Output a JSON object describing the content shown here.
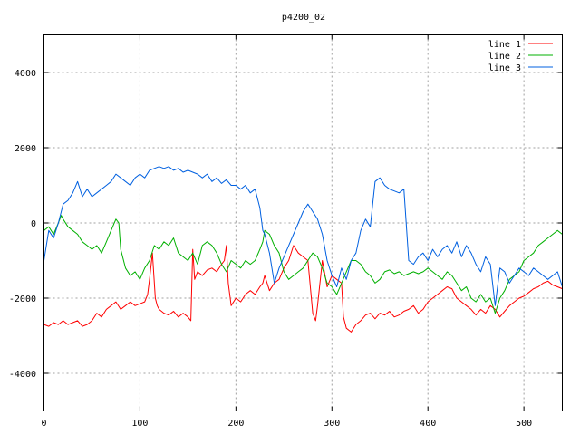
{
  "chart_data": {
    "type": "line",
    "title": "p4200_02",
    "xlabel": "",
    "ylabel": "",
    "xlim": [
      0,
      540
    ],
    "ylim": [
      -5000,
      5000
    ],
    "xticks": [
      0,
      100,
      200,
      300,
      400,
      500
    ],
    "yticks": [
      -4000,
      -2000,
      0,
      2000,
      4000
    ],
    "xtick_labels": [
      "0",
      "100",
      "200",
      "300",
      "400",
      "500"
    ],
    "ytick_labels": [
      "-4000",
      "-2000",
      "0",
      "2000",
      "4000"
    ],
    "grid": true,
    "legend_position": "top-right",
    "series": [
      {
        "name": "line 1",
        "color": "#ff0000",
        "x": [
          0,
          5,
          10,
          15,
          20,
          25,
          30,
          35,
          40,
          45,
          50,
          55,
          60,
          65,
          70,
          75,
          80,
          85,
          90,
          95,
          100,
          105,
          108,
          110,
          113,
          116,
          118,
          120,
          125,
          130,
          135,
          140,
          145,
          150,
          153,
          155,
          157,
          160,
          165,
          170,
          175,
          180,
          185,
          188,
          190,
          192,
          195,
          200,
          205,
          210,
          215,
          220,
          225,
          228,
          230,
          235,
          240,
          245,
          250,
          255,
          260,
          265,
          270,
          275,
          280,
          283,
          285,
          290,
          295,
          300,
          305,
          310,
          312,
          315,
          320,
          325,
          330,
          335,
          340,
          345,
          350,
          355,
          360,
          365,
          370,
          375,
          380,
          385,
          390,
          395,
          400,
          405,
          410,
          415,
          420,
          425,
          430,
          435,
          440,
          445,
          450,
          455,
          460,
          465,
          470,
          475,
          480,
          485,
          490,
          495,
          500,
          505,
          510,
          515,
          520,
          525,
          530,
          535,
          540
        ],
        "y": [
          -2700,
          -2750,
          -2650,
          -2700,
          -2600,
          -2700,
          -2650,
          -2600,
          -2750,
          -2700,
          -2600,
          -2400,
          -2500,
          -2300,
          -2200,
          -2100,
          -2300,
          -2200,
          -2100,
          -2200,
          -2150,
          -2100,
          -1900,
          -1500,
          -800,
          -2000,
          -2200,
          -2300,
          -2400,
          -2450,
          -2350,
          -2500,
          -2400,
          -2500,
          -2600,
          -700,
          -1500,
          -1300,
          -1400,
          -1250,
          -1200,
          -1300,
          -1100,
          -1000,
          -600,
          -1600,
          -2200,
          -2000,
          -2100,
          -1900,
          -1800,
          -1900,
          -1700,
          -1600,
          -1400,
          -1800,
          -1600,
          -1500,
          -1200,
          -1000,
          -600,
          -800,
          -900,
          -1000,
          -2400,
          -2600,
          -2200,
          -1000,
          -1700,
          -1400,
          -1500,
          -1600,
          -2500,
          -2800,
          -2900,
          -2700,
          -2600,
          -2450,
          -2400,
          -2550,
          -2400,
          -2450,
          -2350,
          -2500,
          -2450,
          -2350,
          -2300,
          -2200,
          -2400,
          -2300,
          -2100,
          -2000,
          -1900,
          -1800,
          -1700,
          -1750,
          -2000,
          -2100,
          -2200,
          -2300,
          -2450,
          -2300,
          -2400,
          -2200,
          -2300,
          -2500,
          -2350,
          -2200,
          -2100,
          -2000,
          -1950,
          -1850,
          -1750,
          -1700,
          -1600,
          -1550,
          -1650,
          -1700,
          -1750
        ]
      },
      {
        "name": "line 2",
        "color": "#00b000",
        "x": [
          0,
          5,
          10,
          15,
          18,
          20,
          25,
          30,
          35,
          40,
          45,
          50,
          55,
          60,
          65,
          70,
          75,
          78,
          80,
          85,
          90,
          95,
          100,
          105,
          110,
          115,
          120,
          125,
          130,
          135,
          140,
          145,
          150,
          155,
          160,
          165,
          170,
          175,
          180,
          185,
          190,
          195,
          200,
          205,
          210,
          215,
          220,
          225,
          228,
          230,
          235,
          240,
          245,
          250,
          255,
          260,
          265,
          270,
          275,
          280,
          285,
          290,
          295,
          300,
          305,
          310,
          315,
          320,
          325,
          330,
          335,
          340,
          345,
          350,
          355,
          360,
          365,
          370,
          375,
          380,
          385,
          390,
          395,
          400,
          405,
          410,
          415,
          420,
          425,
          430,
          435,
          440,
          445,
          450,
          455,
          460,
          465,
          470,
          475,
          480,
          485,
          490,
          495,
          500,
          505,
          510,
          515,
          520,
          525,
          530,
          535,
          540
        ],
        "y": [
          -200,
          -100,
          -300,
          0,
          200,
          100,
          -100,
          -200,
          -300,
          -500,
          -600,
          -700,
          -600,
          -800,
          -500,
          -200,
          100,
          0,
          -700,
          -1200,
          -1400,
          -1300,
          -1500,
          -1200,
          -1000,
          -600,
          -700,
          -500,
          -600,
          -400,
          -800,
          -900,
          -1000,
          -800,
          -1100,
          -600,
          -500,
          -600,
          -800,
          -1100,
          -1300,
          -1000,
          -1100,
          -1200,
          -1000,
          -1100,
          -1000,
          -700,
          -500,
          -200,
          -300,
          -600,
          -800,
          -1300,
          -1500,
          -1400,
          -1300,
          -1200,
          -1000,
          -800,
          -900,
          -1200,
          -1600,
          -1700,
          -1900,
          -1600,
          -1300,
          -1000,
          -1000,
          -1100,
          -1300,
          -1400,
          -1600,
          -1500,
          -1300,
          -1250,
          -1350,
          -1300,
          -1400,
          -1350,
          -1300,
          -1350,
          -1300,
          -1200,
          -1300,
          -1400,
          -1500,
          -1300,
          -1400,
          -1600,
          -1800,
          -1700,
          -2000,
          -2100,
          -1900,
          -2100,
          -2000,
          -2400,
          -2000,
          -1800,
          -1500,
          -1400,
          -1300,
          -1000,
          -900,
          -800,
          -600,
          -500,
          -400,
          -300,
          -200,
          -300
        ]
      },
      {
        "name": "line 3",
        "color": "#0060e0",
        "x": [
          0,
          5,
          10,
          15,
          20,
          25,
          30,
          35,
          40,
          45,
          50,
          55,
          60,
          65,
          70,
          75,
          80,
          85,
          90,
          95,
          100,
          105,
          110,
          115,
          120,
          125,
          130,
          135,
          140,
          145,
          150,
          155,
          160,
          165,
          170,
          175,
          180,
          185,
          190,
          195,
          200,
          205,
          210,
          215,
          220,
          225,
          228,
          230,
          235,
          240,
          245,
          250,
          255,
          260,
          265,
          270,
          275,
          280,
          285,
          290,
          295,
          300,
          305,
          310,
          315,
          320,
          325,
          330,
          335,
          340,
          345,
          350,
          355,
          360,
          365,
          370,
          375,
          380,
          385,
          390,
          395,
          400,
          405,
          410,
          415,
          420,
          425,
          430,
          435,
          440,
          445,
          450,
          455,
          460,
          465,
          470,
          475,
          480,
          485,
          490,
          495,
          500,
          505,
          510,
          515,
          520,
          525,
          530,
          535,
          540
        ],
        "y": [
          -1000,
          -200,
          -400,
          0,
          500,
          600,
          800,
          1100,
          700,
          900,
          700,
          800,
          900,
          1000,
          1100,
          1300,
          1200,
          1100,
          1000,
          1200,
          1300,
          1200,
          1400,
          1450,
          1500,
          1450,
          1500,
          1400,
          1450,
          1350,
          1400,
          1350,
          1300,
          1200,
          1300,
          1100,
          1200,
          1050,
          1150,
          1000,
          1000,
          900,
          1000,
          800,
          900,
          400,
          -200,
          -300,
          -800,
          -1600,
          -1200,
          -900,
          -600,
          -300,
          0,
          300,
          500,
          300,
          100,
          -300,
          -1000,
          -1400,
          -1700,
          -1200,
          -1500,
          -1000,
          -800,
          -200,
          100,
          -100,
          1100,
          1200,
          1000,
          900,
          850,
          800,
          900,
          -1000,
          -1100,
          -900,
          -800,
          -1000,
          -700,
          -900,
          -700,
          -600,
          -800,
          -500,
          -900,
          -600,
          -800,
          -1100,
          -1300,
          -900,
          -1100,
          -2200,
          -1200,
          -1300,
          -1600,
          -1400,
          -1200,
          -1300,
          -1400,
          -1200,
          -1300,
          -1400,
          -1500,
          -1400,
          -1300,
          -1700
        ]
      }
    ]
  }
}
